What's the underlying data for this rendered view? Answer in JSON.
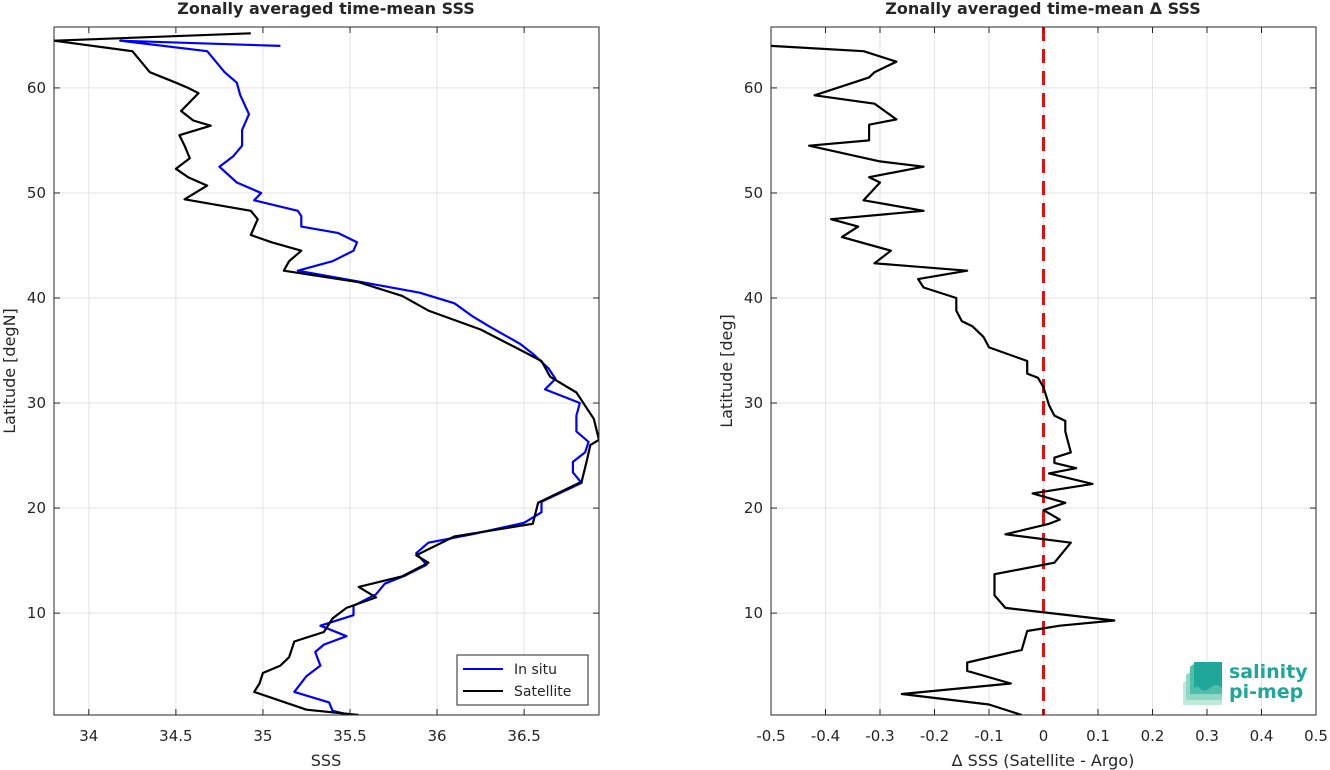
{
  "chart_data": [
    {
      "type": "line",
      "title": "Zonally averaged time-mean SSS",
      "xlabel": "SSS",
      "ylabel": "Latitude [degN]",
      "xlim": [
        33.8,
        36.93
      ],
      "ylim": [
        0.3,
        65.8
      ],
      "xticks": [
        34,
        34.5,
        35,
        35.5,
        36,
        36.5
      ],
      "xtick_labels": [
        "34",
        "34.5",
        "35",
        "35.5",
        "36",
        "36.5"
      ],
      "yticks": [
        10,
        20,
        30,
        40,
        50,
        60
      ],
      "ytick_labels": [
        "10",
        "20",
        "30",
        "40",
        "50",
        "60"
      ],
      "grid": true,
      "legend": "bottom-right",
      "series": [
        {
          "name": "In situ",
          "color": "#0000ff",
          "points": [
            [
              35.1,
              64
            ],
            [
              34.18,
              64.5
            ],
            [
              34.68,
              63.5
            ],
            [
              34.78,
              61.5
            ],
            [
              34.85,
              60.5
            ],
            [
              34.87,
              59.3
            ],
            [
              34.92,
              57.5
            ],
            [
              34.88,
              56
            ],
            [
              34.88,
              54.5
            ],
            [
              34.83,
              53.5
            ],
            [
              34.75,
              52.5
            ],
            [
              34.85,
              51
            ],
            [
              34.99,
              50
            ],
            [
              34.95,
              49.3
            ],
            [
              35.2,
              48.3
            ],
            [
              35.22,
              47.8
            ],
            [
              35.22,
              46.8
            ],
            [
              35.43,
              46.2
            ],
            [
              35.54,
              45.3
            ],
            [
              35.52,
              44.5
            ],
            [
              35.4,
              43.5
            ],
            [
              35.2,
              42.6
            ],
            [
              35.57,
              41.5
            ],
            [
              35.9,
              40.5
            ],
            [
              36.1,
              39.5
            ],
            [
              36.2,
              38.3
            ],
            [
              36.3,
              37.3
            ],
            [
              36.48,
              35.6
            ],
            [
              36.55,
              34.7
            ],
            [
              36.64,
              33.3
            ],
            [
              36.68,
              32.3
            ],
            [
              36.62,
              31.3
            ],
            [
              36.82,
              30
            ],
            [
              36.8,
              28.8
            ],
            [
              36.8,
              27.3
            ],
            [
              36.87,
              26.3
            ],
            [
              36.85,
              25.3
            ],
            [
              36.78,
              24.4
            ],
            [
              36.78,
              23.4
            ],
            [
              36.83,
              22.4
            ],
            [
              36.6,
              20.6
            ],
            [
              36.6,
              19.6
            ],
            [
              36.5,
              18.6
            ],
            [
              36.2,
              17.5
            ],
            [
              35.95,
              16.7
            ],
            [
              35.88,
              15.7
            ],
            [
              35.94,
              14.6
            ],
            [
              35.82,
              13.6
            ],
            [
              35.7,
              12.8
            ],
            [
              35.65,
              11.8
            ],
            [
              35.52,
              10.7
            ],
            [
              35.52,
              9.8
            ],
            [
              35.33,
              8.8
            ],
            [
              35.48,
              7.8
            ],
            [
              35.35,
              7
            ],
            [
              35.3,
              6.3
            ],
            [
              35.33,
              5
            ],
            [
              35.25,
              4
            ],
            [
              35.18,
              2.5
            ],
            [
              35.38,
              1.5
            ],
            [
              35.4,
              0.7
            ],
            [
              35.5,
              0.3
            ]
          ]
        },
        {
          "name": "Satellite",
          "color": "#000000",
          "points": [
            [
              34.93,
              65.2
            ],
            [
              33.8,
              64.5
            ],
            [
              34.25,
              63.5
            ],
            [
              34.35,
              61.5
            ],
            [
              34.5,
              60.5
            ],
            [
              34.57,
              60
            ],
            [
              34.63,
              59.5
            ],
            [
              34.53,
              57.8
            ],
            [
              34.6,
              56.9
            ],
            [
              34.7,
              56.4
            ],
            [
              34.52,
              55.5
            ],
            [
              34.55,
              54.5
            ],
            [
              34.58,
              53.3
            ],
            [
              34.5,
              52.3
            ],
            [
              34.57,
              51.5
            ],
            [
              34.68,
              50.7
            ],
            [
              34.55,
              49.4
            ],
            [
              34.93,
              48.3
            ],
            [
              34.97,
              47.5
            ],
            [
              34.93,
              46
            ],
            [
              35.05,
              45.3
            ],
            [
              35.22,
              44.5
            ],
            [
              35.15,
              43.5
            ],
            [
              35.12,
              42.6
            ],
            [
              35.55,
              41.5
            ],
            [
              35.8,
              40.2
            ],
            [
              35.95,
              38.8
            ],
            [
              36.25,
              37
            ],
            [
              36.45,
              35.3
            ],
            [
              36.6,
              34
            ],
            [
              36.65,
              32.5
            ],
            [
              36.8,
              31
            ],
            [
              36.9,
              28.5
            ],
            [
              36.93,
              26.5
            ],
            [
              36.88,
              26
            ],
            [
              36.86,
              24.5
            ],
            [
              36.83,
              22.5
            ],
            [
              36.58,
              20.5
            ],
            [
              36.55,
              18.5
            ],
            [
              36.1,
              17.3
            ],
            [
              35.88,
              15.5
            ],
            [
              35.95,
              14.8
            ],
            [
              35.8,
              13.5
            ],
            [
              35.55,
              12.5
            ],
            [
              35.65,
              11.5
            ],
            [
              35.48,
              10.5
            ],
            [
              35.4,
              9.5
            ],
            [
              35.35,
              8.2
            ],
            [
              35.18,
              7.3
            ],
            [
              35.15,
              5.8
            ],
            [
              35.1,
              5
            ],
            [
              35.0,
              4.3
            ],
            [
              34.98,
              3.3
            ],
            [
              34.95,
              2.5
            ],
            [
              35.25,
              0.8
            ],
            [
              35.55,
              0.3
            ]
          ]
        }
      ]
    },
    {
      "type": "line",
      "title": "Zonally averaged time-mean Δ SSS",
      "xlabel": "Δ SSS (Satellite - Argo)",
      "ylabel": "Latitude [deg]",
      "xlim": [
        -0.5,
        0.5
      ],
      "ylim": [
        0.3,
        65.8
      ],
      "xticks": [
        -0.5,
        -0.4,
        -0.3,
        -0.2,
        -0.1,
        0,
        0.1,
        0.2,
        0.3,
        0.4,
        0.5
      ],
      "xtick_labels": [
        "-0.5",
        "-0.4",
        "-0.3",
        "-0.2",
        "-0.1",
        "0",
        "0.1",
        "0.2",
        "0.3",
        "0.4",
        "0.5"
      ],
      "yticks": [
        10,
        20,
        30,
        40,
        50,
        60
      ],
      "ytick_labels": [
        "10",
        "20",
        "30",
        "40",
        "50",
        "60"
      ],
      "grid": true,
      "reference_line": {
        "x": 0,
        "color": "#dd1111",
        "style": "dashed"
      },
      "series": [
        {
          "color": "#000000",
          "points": [
            [
              -0.5,
              64
            ],
            [
              -0.33,
              63.5
            ],
            [
              -0.27,
              62.5
            ],
            [
              -0.31,
              61.5
            ],
            [
              -0.32,
              61
            ],
            [
              -0.42,
              59.3
            ],
            [
              -0.31,
              58.5
            ],
            [
              -0.27,
              57
            ],
            [
              -0.32,
              56.5
            ],
            [
              -0.32,
              55
            ],
            [
              -0.43,
              54.5
            ],
            [
              -0.3,
              53
            ],
            [
              -0.22,
              52.5
            ],
            [
              -0.32,
              51.5
            ],
            [
              -0.3,
              51
            ],
            [
              -0.33,
              49.3
            ],
            [
              -0.22,
              48.3
            ],
            [
              -0.39,
              47.5
            ],
            [
              -0.34,
              46.8
            ],
            [
              -0.37,
              45.8
            ],
            [
              -0.28,
              44.5
            ],
            [
              -0.31,
              43.3
            ],
            [
              -0.14,
              42.6
            ],
            [
              -0.23,
              41.8
            ],
            [
              -0.22,
              41
            ],
            [
              -0.16,
              40
            ],
            [
              -0.16,
              38.8
            ],
            [
              -0.15,
              37.8
            ],
            [
              -0.13,
              37.3
            ],
            [
              -0.11,
              36.3
            ],
            [
              -0.1,
              35.3
            ],
            [
              -0.03,
              34
            ],
            [
              -0.03,
              32.8
            ],
            [
              -0.01,
              32.4
            ],
            [
              0.0,
              31.5
            ],
            [
              0.01,
              29.8
            ],
            [
              0.02,
              28.8
            ],
            [
              0.04,
              28.3
            ],
            [
              0.04,
              27.3
            ],
            [
              0.05,
              25.3
            ],
            [
              0.02,
              24.8
            ],
            [
              0.02,
              24.3
            ],
            [
              0.06,
              23.8
            ],
            [
              0.01,
              23.3
            ],
            [
              0.09,
              22.3
            ],
            [
              -0.02,
              21.4
            ],
            [
              0.04,
              20.5
            ],
            [
              0.0,
              19.8
            ],
            [
              0.03,
              18.9
            ],
            [
              0.01,
              18.5
            ],
            [
              -0.07,
              17.5
            ],
            [
              0.05,
              16.7
            ],
            [
              0.02,
              14.8
            ],
            [
              -0.09,
              13.7
            ],
            [
              -0.09,
              11.7
            ],
            [
              -0.07,
              10.5
            ],
            [
              0.13,
              9.3
            ],
            [
              0.03,
              8.8
            ],
            [
              -0.03,
              8.3
            ],
            [
              -0.04,
              6.5
            ],
            [
              -0.14,
              5.3
            ],
            [
              -0.14,
              4.5
            ],
            [
              -0.06,
              3.3
            ],
            [
              -0.26,
              2.3
            ],
            [
              -0.1,
              1.3
            ],
            [
              -0.04,
              0.3
            ]
          ]
        }
      ]
    }
  ],
  "logo": {
    "line1": "salinity",
    "line2": "pi-mep",
    "color_primary": "#1fa89a",
    "color_light": "#8fd8c6"
  }
}
